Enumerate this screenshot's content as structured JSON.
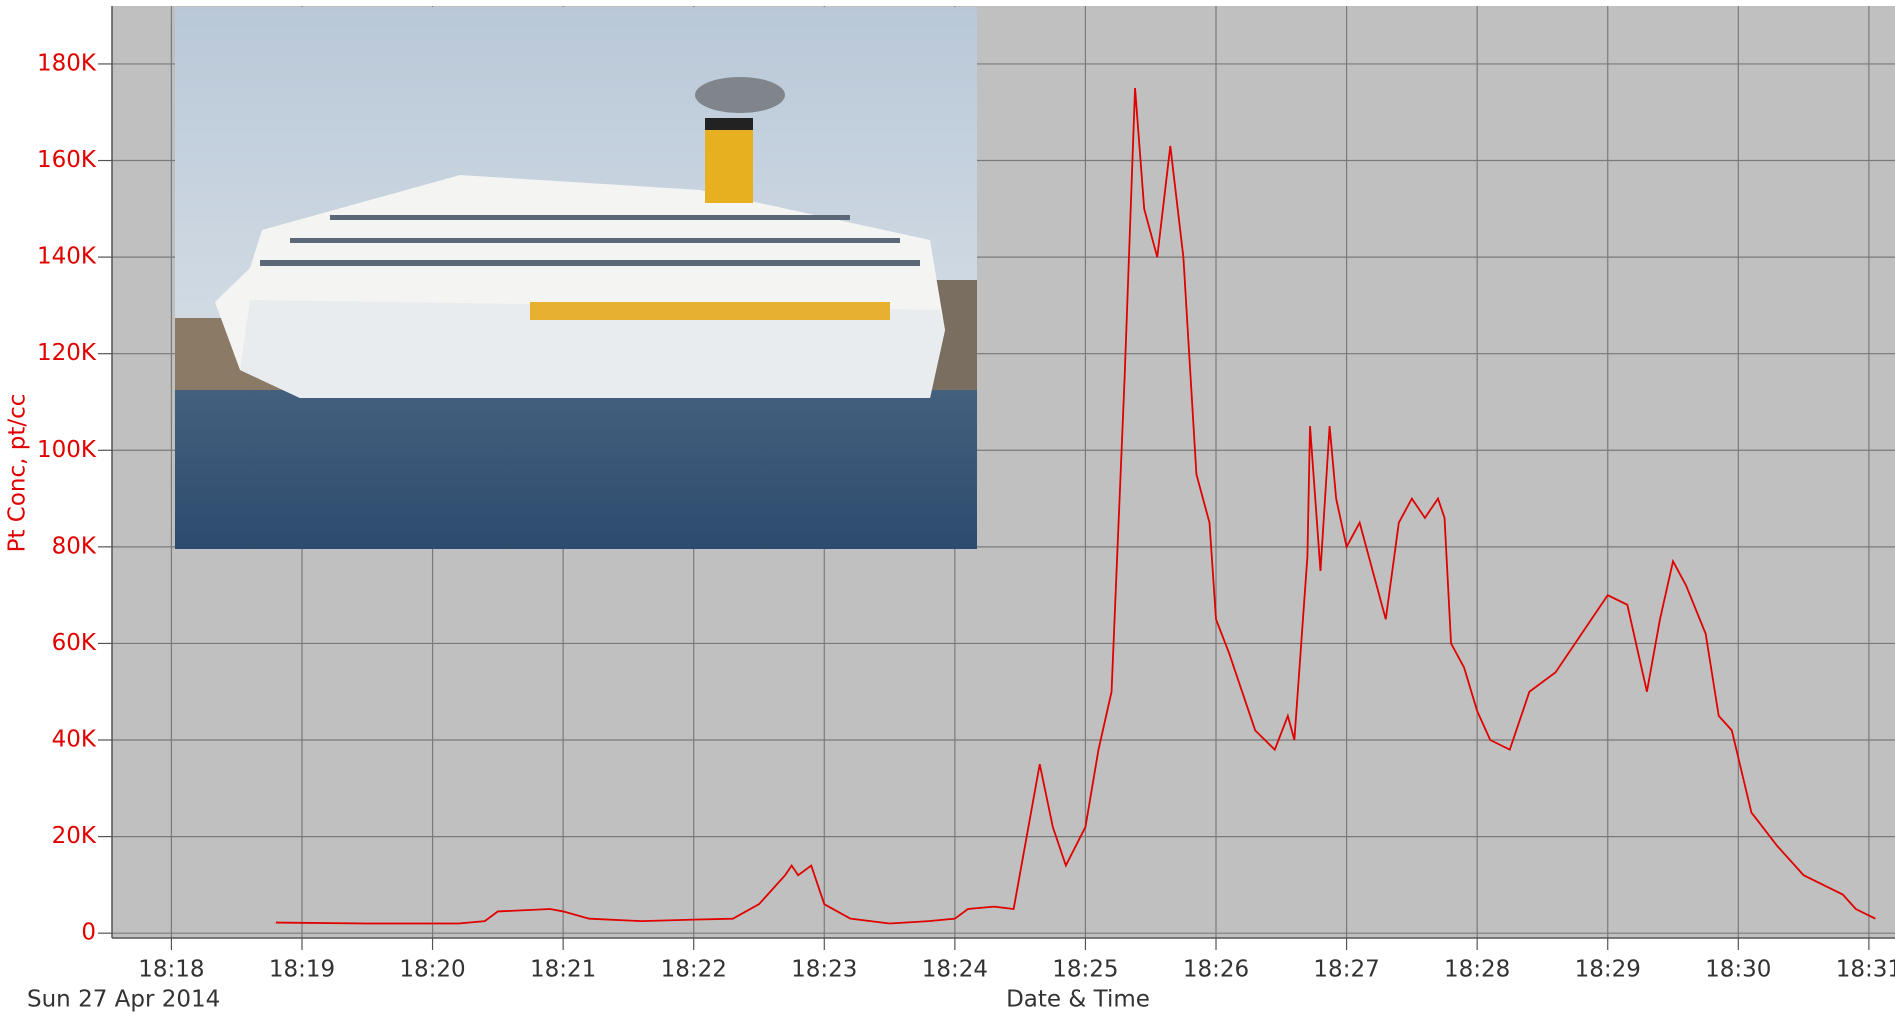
{
  "chart_data": {
    "type": "line",
    "y_label": "Pt Conc, pt/cc",
    "x_label": "Date & Time",
    "date_label": "Sun 27 Apr 2014",
    "color": "#e00000",
    "grid": true,
    "xlim": [
      1097.545,
      1111.2
    ],
    "ylim": [
      -1000,
      192000
    ],
    "xticks": [
      {
        "value": 1098,
        "label": "18:18"
      },
      {
        "value": 1099,
        "label": "18:19"
      },
      {
        "value": 1100,
        "label": "18:20"
      },
      {
        "value": 1101,
        "label": "18:21"
      },
      {
        "value": 1102,
        "label": "18:22"
      },
      {
        "value": 1103,
        "label": "18:23"
      },
      {
        "value": 1104,
        "label": "18:24"
      },
      {
        "value": 1105,
        "label": "18:25"
      },
      {
        "value": 1106,
        "label": "18:26"
      },
      {
        "value": 1107,
        "label": "18:27"
      },
      {
        "value": 1108,
        "label": "18:28"
      },
      {
        "value": 1109,
        "label": "18:29"
      },
      {
        "value": 1110,
        "label": "18:30"
      },
      {
        "value": 1111,
        "label": "18:31"
      }
    ],
    "yticks": [
      0,
      {
        "value": 20000,
        "label": "20K"
      },
      {
        "value": 40000,
        "label": "40K"
      },
      {
        "value": 60000,
        "label": "60K"
      },
      {
        "value": 80000,
        "label": "80K"
      },
      {
        "value": 100000,
        "label": "100K"
      },
      {
        "value": 120000,
        "label": "120K"
      },
      {
        "value": 140000,
        "label": "140K"
      },
      {
        "value": 160000,
        "label": "160K"
      },
      {
        "value": 180000,
        "label": "180K"
      }
    ],
    "x": [
      1098.8,
      1099.5,
      1100.2,
      1100.4,
      1100.5,
      1100.9,
      1101.0,
      1101.2,
      1101.6,
      1102.0,
      1102.3,
      1102.5,
      1102.7,
      1102.75,
      1102.8,
      1102.9,
      1103.0,
      1103.2,
      1103.5,
      1103.8,
      1104.0,
      1104.1,
      1104.3,
      1104.45,
      1104.55,
      1104.65,
      1104.75,
      1104.85,
      1105.0,
      1105.1,
      1105.2,
      1105.3,
      1105.38,
      1105.45,
      1105.55,
      1105.65,
      1105.75,
      1105.85,
      1105.95,
      1106.0,
      1106.1,
      1106.2,
      1106.3,
      1106.45,
      1106.55,
      1106.6,
      1106.7,
      1106.72,
      1106.8,
      1106.87,
      1106.92,
      1107.0,
      1107.1,
      1107.2,
      1107.3,
      1107.4,
      1107.5,
      1107.6,
      1107.7,
      1107.75,
      1107.8,
      1107.9,
      1108.0,
      1108.1,
      1108.25,
      1108.4,
      1108.6,
      1108.8,
      1109.0,
      1109.15,
      1109.3,
      1109.4,
      1109.5,
      1109.6,
      1109.75,
      1109.85,
      1109.95,
      1110.1,
      1110.3,
      1110.5,
      1110.8,
      1110.9,
      1111.05
    ],
    "values": [
      2200,
      2000,
      2000,
      2500,
      4500,
      5000,
      4500,
      3000,
      2500,
      2800,
      3000,
      6000,
      12000,
      14000,
      12000,
      14000,
      6000,
      3000,
      2000,
      2500,
      3000,
      5000,
      5500,
      5000,
      20000,
      35000,
      22000,
      14000,
      22000,
      38000,
      50000,
      115000,
      175000,
      150000,
      140000,
      163000,
      140000,
      95000,
      85000,
      65000,
      58000,
      50000,
      42000,
      38000,
      45000,
      40000,
      78000,
      105000,
      75000,
      105000,
      90000,
      80000,
      85000,
      75000,
      65000,
      85000,
      90000,
      86000,
      90000,
      86000,
      60000,
      55000,
      46000,
      40000,
      38000,
      50000,
      54000,
      62000,
      70000,
      68000,
      50000,
      65000,
      77000,
      72000,
      62000,
      45000,
      42000,
      25000,
      18000,
      12000,
      8000,
      5000,
      3000
    ]
  }
}
